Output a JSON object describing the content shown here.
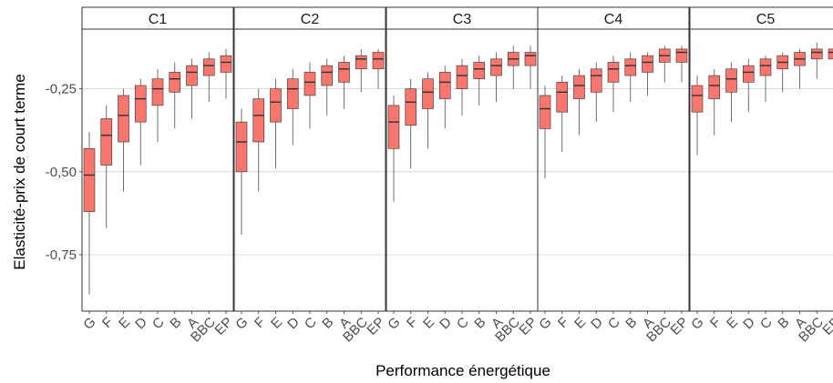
{
  "chart_data": {
    "type": "boxplot",
    "xlabel": "Performance énergétique",
    "ylabel": "Elasticité-prix de court terme",
    "ylim": [
      -0.92,
      -0.07
    ],
    "y_ticks": [
      {
        "value": -0.25,
        "label": "-0,25"
      },
      {
        "value": -0.5,
        "label": "-0,50"
      },
      {
        "value": -0.75,
        "label": "-0,75"
      }
    ],
    "grid": true,
    "categories": [
      "G",
      "F",
      "E",
      "D",
      "C",
      "B",
      "A",
      "BBC",
      "EP"
    ],
    "colors": {
      "box_fill": "#f8766d",
      "box_line": "#333333",
      "whisker": "#4d4d4d",
      "grid": "#d0d0d0",
      "strip_bg": "#ffffff",
      "panel_border": "#333333"
    },
    "panels": [
      {
        "name": "C1",
        "boxes": [
          {
            "min": -0.87,
            "q1": -0.62,
            "median": -0.51,
            "q3": -0.43,
            "max": -0.38
          },
          {
            "min": -0.67,
            "q1": -0.48,
            "median": -0.39,
            "q3": -0.34,
            "max": -0.3
          },
          {
            "min": -0.56,
            "q1": -0.41,
            "median": -0.33,
            "q3": -0.27,
            "max": -0.25
          },
          {
            "min": -0.48,
            "q1": -0.35,
            "median": -0.28,
            "q3": -0.24,
            "max": -0.22
          },
          {
            "min": -0.41,
            "q1": -0.3,
            "median": -0.25,
            "q3": -0.22,
            "max": -0.19
          },
          {
            "min": -0.37,
            "q1": -0.26,
            "median": -0.22,
            "q3": -0.2,
            "max": -0.17
          },
          {
            "min": -0.34,
            "q1": -0.24,
            "median": -0.2,
            "q3": -0.18,
            "max": -0.16
          },
          {
            "min": -0.29,
            "q1": -0.21,
            "median": -0.18,
            "q3": -0.16,
            "max": -0.14
          },
          {
            "min": -0.28,
            "q1": -0.2,
            "median": -0.17,
            "q3": -0.15,
            "max": -0.13
          }
        ]
      },
      {
        "name": "C2",
        "boxes": [
          {
            "min": -0.69,
            "q1": -0.5,
            "median": -0.41,
            "q3": -0.35,
            "max": -0.31
          },
          {
            "min": -0.56,
            "q1": -0.41,
            "median": -0.33,
            "q3": -0.28,
            "max": -0.25
          },
          {
            "min": -0.49,
            "q1": -0.35,
            "median": -0.29,
            "q3": -0.25,
            "max": -0.22
          },
          {
            "min": -0.42,
            "q1": -0.31,
            "median": -0.25,
            "q3": -0.22,
            "max": -0.19
          },
          {
            "min": -0.37,
            "q1": -0.27,
            "median": -0.23,
            "q3": -0.2,
            "max": -0.17
          },
          {
            "min": -0.33,
            "q1": -0.24,
            "median": -0.2,
            "q3": -0.18,
            "max": -0.16
          },
          {
            "min": -0.31,
            "q1": -0.23,
            "median": -0.19,
            "q3": -0.17,
            "max": -0.15
          },
          {
            "min": -0.26,
            "q1": -0.19,
            "median": -0.16,
            "q3": -0.15,
            "max": -0.13
          },
          {
            "min": -0.25,
            "q1": -0.19,
            "median": -0.16,
            "q3": -0.14,
            "max": -0.13
          }
        ]
      },
      {
        "name": "C3",
        "boxes": [
          {
            "min": -0.59,
            "q1": -0.43,
            "median": -0.35,
            "q3": -0.3,
            "max": -0.27
          },
          {
            "min": -0.49,
            "q1": -0.36,
            "median": -0.29,
            "q3": -0.25,
            "max": -0.22
          },
          {
            "min": -0.43,
            "q1": -0.31,
            "median": -0.26,
            "q3": -0.22,
            "max": -0.2
          },
          {
            "min": -0.37,
            "q1": -0.28,
            "median": -0.23,
            "q3": -0.2,
            "max": -0.18
          },
          {
            "min": -0.33,
            "q1": -0.25,
            "median": -0.21,
            "q3": -0.18,
            "max": -0.16
          },
          {
            "min": -0.3,
            "q1": -0.22,
            "median": -0.19,
            "q3": -0.17,
            "max": -0.15
          },
          {
            "min": -0.29,
            "q1": -0.21,
            "median": -0.18,
            "q3": -0.16,
            "max": -0.14
          },
          {
            "min": -0.25,
            "q1": -0.18,
            "median": -0.16,
            "q3": -0.14,
            "max": -0.12
          },
          {
            "min": -0.25,
            "q1": -0.18,
            "median": -0.15,
            "q3": -0.14,
            "max": -0.12
          }
        ]
      },
      {
        "name": "C4",
        "boxes": [
          {
            "min": -0.52,
            "q1": -0.37,
            "median": -0.31,
            "q3": -0.27,
            "max": -0.24
          },
          {
            "min": -0.44,
            "q1": -0.32,
            "median": -0.26,
            "q3": -0.23,
            "max": -0.21
          },
          {
            "min": -0.39,
            "q1": -0.28,
            "median": -0.24,
            "q3": -0.21,
            "max": -0.19
          },
          {
            "min": -0.35,
            "q1": -0.26,
            "median": -0.21,
            "q3": -0.19,
            "max": -0.17
          },
          {
            "min": -0.32,
            "q1": -0.23,
            "median": -0.19,
            "q3": -0.17,
            "max": -0.15
          },
          {
            "min": -0.29,
            "q1": -0.21,
            "median": -0.18,
            "q3": -0.16,
            "max": -0.14
          },
          {
            "min": -0.27,
            "q1": -0.2,
            "median": -0.17,
            "q3": -0.15,
            "max": -0.14
          },
          {
            "min": -0.23,
            "q1": -0.17,
            "median": -0.15,
            "q3": -0.13,
            "max": -0.12
          },
          {
            "min": -0.23,
            "q1": -0.17,
            "median": -0.14,
            "q3": -0.13,
            "max": -0.12
          }
        ]
      },
      {
        "name": "C5",
        "boxes": [
          {
            "min": -0.45,
            "q1": -0.32,
            "median": -0.27,
            "q3": -0.24,
            "max": -0.21
          },
          {
            "min": -0.39,
            "q1": -0.28,
            "median": -0.24,
            "q3": -0.21,
            "max": -0.19
          },
          {
            "min": -0.35,
            "q1": -0.26,
            "median": -0.22,
            "q3": -0.19,
            "max": -0.17
          },
          {
            "min": -0.32,
            "q1": -0.23,
            "median": -0.2,
            "q3": -0.18,
            "max": -0.16
          },
          {
            "min": -0.29,
            "q1": -0.21,
            "median": -0.18,
            "q3": -0.16,
            "max": -0.15
          },
          {
            "min": -0.26,
            "q1": -0.19,
            "median": -0.17,
            "q3": -0.15,
            "max": -0.14
          },
          {
            "min": -0.25,
            "q1": -0.18,
            "median": -0.16,
            "q3": -0.14,
            "max": -0.13
          },
          {
            "min": -0.22,
            "q1": -0.16,
            "median": -0.14,
            "q3": -0.13,
            "max": -0.11
          },
          {
            "min": -0.22,
            "q1": -0.16,
            "median": -0.14,
            "q3": -0.13,
            "max": -0.11
          }
        ]
      }
    ]
  }
}
